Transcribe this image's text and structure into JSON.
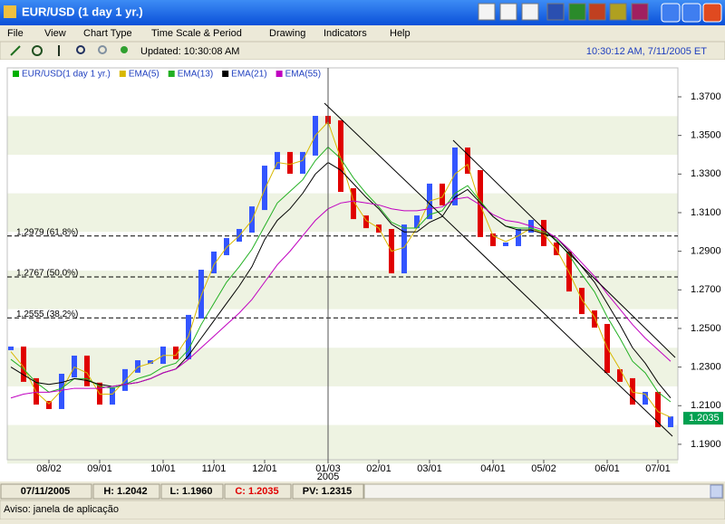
{
  "window": {
    "title": "EUR/USD (1 day 1 yr.)"
  },
  "menu": [
    "File",
    "View",
    "Chart Type",
    "Time Scale & Period",
    "Drawing",
    "Indicators",
    "Help"
  ],
  "toolbar": {
    "updated": "Updated: 10:30:08 AM",
    "clock": "10:30:12 AM, 7/11/2005 ET"
  },
  "chart_data": {
    "type": "line",
    "categories": [
      null,
      null,
      null,
      "08/02",
      null,
      null,
      null,
      "09/01",
      null,
      null,
      null,
      null,
      "10/01",
      null,
      null,
      null,
      "11/01",
      null,
      null,
      null,
      "12/01",
      null,
      null,
      null,
      null,
      "01/03",
      null,
      null,
      null,
      "02/01",
      null,
      null,
      null,
      "03/01",
      null,
      null,
      null,
      null,
      "04/01",
      null,
      null,
      null,
      "05/02",
      null,
      null,
      null,
      null,
      "06/01",
      null,
      null,
      null,
      "07/01",
      null
    ],
    "year_label": "2005",
    "series": [
      {
        "name": "EUR/USD(1 day  1 yr.)",
        "color": "#00b000",
        "up_color": "#3355ff",
        "down_color": "#e00000",
        "values": [
          1.2397,
          1.2233,
          1.2115,
          1.2092,
          1.2256,
          1.235,
          1.221,
          1.2115,
          1.2186,
          1.228,
          1.2326,
          1.2326,
          1.2397,
          1.235,
          1.2561,
          1.2795,
          1.2889,
          1.2959,
          1.3006,
          1.3123,
          1.3334,
          1.3405,
          1.3311,
          1.3405,
          1.3592,
          1.3569,
          1.3217,
          1.3076,
          1.3029,
          1.3006,
          1.2795,
          1.3029,
          1.3076,
          1.3241,
          1.3147,
          1.3428,
          1.3311,
          1.2983,
          1.2936,
          1.2936,
          1.3006,
          1.3053,
          1.2936,
          1.2889,
          1.2701,
          1.2584,
          1.2514,
          1.2279,
          1.2233,
          1.2115,
          1.2162,
          1.1998,
          1.2035
        ]
      },
      {
        "name": "EMA(5)",
        "color": "#d8b800",
        "values": [
          1.238,
          1.23,
          1.217,
          1.211,
          1.218,
          1.23,
          1.227,
          1.216,
          1.216,
          1.223,
          1.23,
          1.232,
          1.236,
          1.236,
          1.246,
          1.267,
          1.283,
          1.292,
          1.298,
          1.306,
          1.322,
          1.336,
          1.335,
          1.337,
          1.35,
          1.357,
          1.338,
          1.316,
          1.306,
          1.302,
          1.29,
          1.292,
          1.302,
          1.316,
          1.318,
          1.33,
          1.335,
          1.314,
          1.298,
          1.295,
          1.298,
          1.302,
          1.299,
          1.291,
          1.279,
          1.265,
          1.256,
          1.24,
          1.229,
          1.217,
          1.216,
          1.207,
          1.204
        ]
      },
      {
        "name": "EMA(13)",
        "color": "#22b022",
        "values": [
          1.234,
          1.229,
          1.222,
          1.217,
          1.219,
          1.224,
          1.224,
          1.22,
          1.219,
          1.221,
          1.224,
          1.226,
          1.23,
          1.232,
          1.239,
          1.252,
          1.263,
          1.274,
          1.282,
          1.291,
          1.303,
          1.315,
          1.321,
          1.327,
          1.337,
          1.344,
          1.338,
          1.328,
          1.32,
          1.313,
          1.305,
          1.302,
          1.302,
          1.309,
          1.311,
          1.32,
          1.324,
          1.316,
          1.308,
          1.303,
          1.302,
          1.302,
          1.3,
          1.296,
          1.288,
          1.278,
          1.269,
          1.256,
          1.245,
          1.233,
          1.227,
          1.217,
          1.212
        ]
      },
      {
        "name": "EMA(21)",
        "color": "#000000",
        "values": [
          1.23,
          1.226,
          1.222,
          1.221,
          1.222,
          1.224,
          1.223,
          1.221,
          1.22,
          1.221,
          1.222,
          1.224,
          1.227,
          1.229,
          1.236,
          1.245,
          1.254,
          1.263,
          1.272,
          1.282,
          1.296,
          1.306,
          1.312,
          1.32,
          1.33,
          1.336,
          1.332,
          1.325,
          1.318,
          1.312,
          1.304,
          1.3,
          1.3,
          1.305,
          1.308,
          1.318,
          1.322,
          1.315,
          1.308,
          1.303,
          1.301,
          1.301,
          1.299,
          1.297,
          1.29,
          1.282,
          1.274,
          1.263,
          1.252,
          1.24,
          1.232,
          1.222,
          1.214
        ]
      },
      {
        "name": "EMA(55)",
        "color": "#c000c0",
        "values": [
          1.214,
          1.216,
          1.217,
          1.217,
          1.218,
          1.219,
          1.219,
          1.219,
          1.22,
          1.221,
          1.222,
          1.224,
          1.227,
          1.229,
          1.234,
          1.24,
          1.246,
          1.252,
          1.258,
          1.265,
          1.274,
          1.283,
          1.29,
          1.298,
          1.306,
          1.312,
          1.315,
          1.316,
          1.315,
          1.314,
          1.312,
          1.311,
          1.311,
          1.312,
          1.313,
          1.317,
          1.318,
          1.314,
          1.309,
          1.306,
          1.305,
          1.303,
          1.301,
          1.297,
          1.291,
          1.284,
          1.277,
          1.268,
          1.26,
          1.252,
          1.245,
          1.239,
          1.233
        ]
      }
    ],
    "ylim": [
      1.1834,
      1.385
    ],
    "yticks": [
      {
        "value": 1.37,
        "label": "1.3700"
      },
      {
        "value": 1.35,
        "label": "1.3500"
      },
      {
        "value": 1.33,
        "label": "1.3300"
      },
      {
        "value": 1.31,
        "label": "1.3100"
      },
      {
        "value": 1.29,
        "label": "1.2900"
      },
      {
        "value": 1.27,
        "label": "1.2700"
      },
      {
        "value": 1.25,
        "label": "1.2500"
      },
      {
        "value": 1.23,
        "label": "1.2300"
      },
      {
        "value": 1.21,
        "label": "1.2100"
      },
      {
        "value": 1.19,
        "label": "1.1900"
      }
    ],
    "fib_levels": [
      {
        "value": 1.2979,
        "label": "1.2979 (61.8%)"
      },
      {
        "value": 1.2767,
        "label": "1.2767 (50.0%)"
      },
      {
        "value": 1.2555,
        "label": "1.2555 (38.2%)"
      }
    ]
  },
  "status": [
    "07/11/2005",
    "H: 1.2042",
    "L: 1.1960",
    "C: 1.2035",
    "PV: 1.2315"
  ],
  "footer": "Aviso: janela de aplicação"
}
